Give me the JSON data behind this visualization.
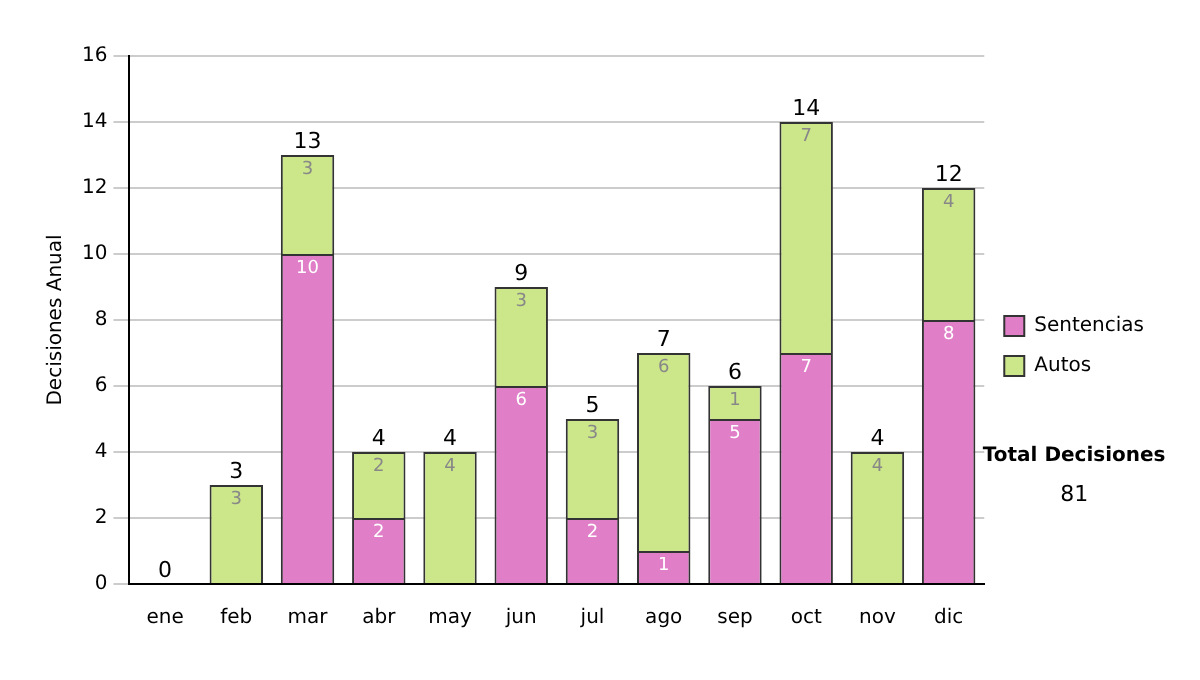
{
  "chart_data": {
    "type": "bar",
    "stacked": true,
    "ylabel": "Decisiones Anual",
    "categories": [
      "ene",
      "feb",
      "mar",
      "abr",
      "may",
      "jun",
      "jul",
      "ago",
      "sep",
      "oct",
      "nov",
      "dic"
    ],
    "series": [
      {
        "name": "Sentencias",
        "color": "#e07fc8",
        "values": [
          0,
          0,
          10,
          2,
          0,
          6,
          2,
          1,
          5,
          7,
          0,
          8
        ],
        "value_labels": [
          null,
          null,
          "10",
          "2",
          null,
          "6",
          "2",
          "1",
          "5",
          "7",
          null,
          "8"
        ]
      },
      {
        "name": "Autos",
        "color": "#cce68a",
        "values": [
          0,
          3,
          3,
          2,
          4,
          3,
          3,
          6,
          1,
          7,
          4,
          4
        ],
        "value_labels": [
          null,
          "3",
          "3",
          "2",
          "4",
          "3",
          "3",
          "6",
          "1",
          "7",
          "4",
          "4"
        ]
      }
    ],
    "totals": [
      "0",
      "3",
      "13",
      "4",
      "4",
      "9",
      "5",
      "7",
      "6",
      "14",
      "4",
      "12"
    ],
    "ylim": [
      0,
      16
    ],
    "yticks": [
      0,
      2,
      4,
      6,
      8,
      10,
      12,
      14,
      16
    ],
    "grid": "y",
    "legend": "right",
    "annotations": [
      "Total Decisiones",
      "81"
    ]
  }
}
